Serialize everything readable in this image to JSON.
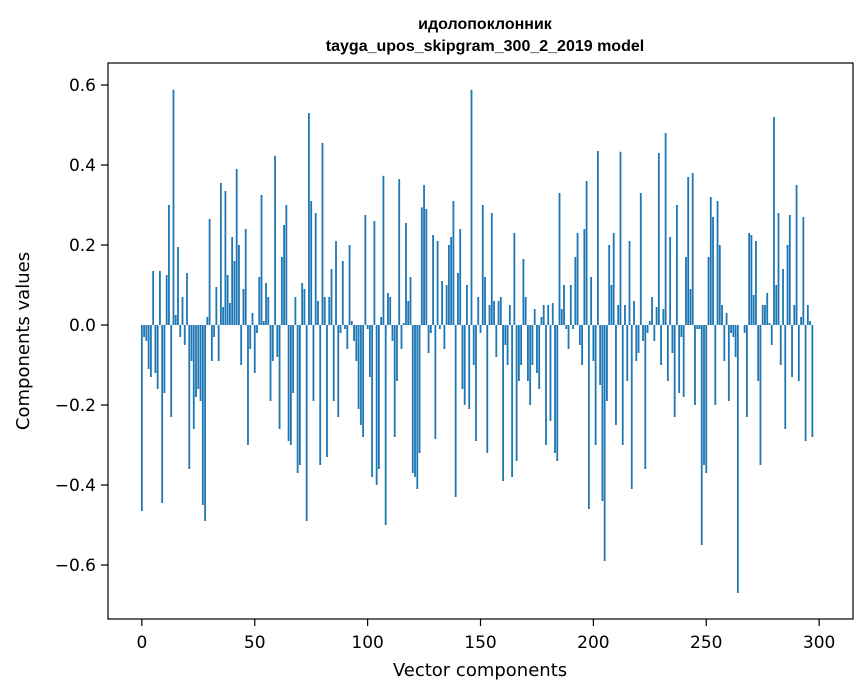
{
  "chart_data": {
    "type": "bar",
    "title": "идолопоклонник",
    "subtitle": "tayga_upos_skipgram_300_2_2019 model",
    "xlabel": "Vector components",
    "ylabel": "Components values",
    "xlim": [
      -15,
      315
    ],
    "ylim": [
      -0.735,
      0.655
    ],
    "xticks": [
      0,
      50,
      100,
      150,
      200,
      250,
      300
    ],
    "yticks": [
      -0.6,
      -0.4,
      -0.2,
      0.0,
      0.2,
      0.4,
      0.6
    ],
    "xtick_labels": [
      "0",
      "50",
      "100",
      "150",
      "200",
      "250",
      "300"
    ],
    "ytick_labels": [
      "−0.6",
      "−0.4",
      "−0.2",
      "0.0",
      "0.2",
      "0.4",
      "0.6"
    ],
    "grid": false,
    "bar_color": "#1f77b4",
    "values": [
      -0.465,
      -0.03,
      -0.04,
      -0.11,
      -0.13,
      0.135,
      -0.12,
      -0.16,
      0.135,
      -0.445,
      -0.17,
      0.125,
      0.3,
      -0.23,
      0.588,
      0.025,
      0.195,
      -0.03,
      0.07,
      -0.05,
      0.13,
      -0.36,
      -0.09,
      -0.26,
      -0.18,
      -0.16,
      -0.19,
      -0.45,
      -0.49,
      0.02,
      0.265,
      -0.09,
      -0.03,
      0.095,
      -0.09,
      0.355,
      0.045,
      0.335,
      0.125,
      0.055,
      0.22,
      0.16,
      0.39,
      0.2,
      -0.1,
      0.09,
      0.24,
      -0.3,
      -0.06,
      0.03,
      -0.12,
      -0.02,
      0.12,
      0.325,
      0.01,
      0.105,
      0.07,
      -0.19,
      -0.09,
      0.423,
      -0.08,
      -0.26,
      0.17,
      0.25,
      0.3,
      -0.29,
      -0.3,
      -0.17,
      0.07,
      -0.37,
      -0.35,
      0.105,
      0.09,
      -0.49,
      0.53,
      0.31,
      -0.19,
      0.28,
      0.06,
      -0.35,
      0.455,
      0.07,
      -0.33,
      0.07,
      0.14,
      -0.19,
      0.21,
      -0.23,
      -0.02,
      0.16,
      -0.01,
      -0.06,
      0.2,
      0.01,
      -0.04,
      -0.09,
      -0.21,
      -0.25,
      -0.28,
      0.275,
      -0.01,
      -0.13,
      -0.38,
      0.26,
      -0.4,
      -0.36,
      0.02,
      0.373,
      -0.5,
      0.08,
      0.07,
      -0.04,
      -0.28,
      -0.14,
      0.365,
      -0.06,
      0.005,
      0.255,
      0.06,
      0.12,
      -0.37,
      -0.38,
      -0.41,
      -0.32,
      0.294,
      0.35,
      0.29,
      -0.07,
      -0.02,
      0.225,
      -0.285,
      0.21,
      -0.01,
      0.11,
      -0.06,
      0.1,
      0.2,
      0.22,
      0.31,
      -0.43,
      0.13,
      0.24,
      -0.16,
      -0.2,
      0.1,
      -0.21,
      0.588,
      -0.1,
      -0.29,
      0.07,
      -0.02,
      0.3,
      0.12,
      -0.32,
      0.05,
      0.28,
      0.06,
      -0.08,
      0.06,
      0.07,
      -0.39,
      -0.05,
      -0.1,
      0.05,
      -0.38,
      0.23,
      -0.34,
      -0.14,
      -0.1,
      0.165,
      0.07,
      -0.14,
      -0.2,
      -0.1,
      0.04,
      -0.12,
      -0.16,
      0.02,
      0.05,
      -0.3,
      0.05,
      -0.24,
      0.055,
      -0.32,
      -0.34,
      0.33,
      0.04,
      0.1,
      -0.01,
      -0.06,
      0.1,
      -0.01,
      0.17,
      0.23,
      -0.05,
      -0.1,
      0.24,
      0.36,
      -0.46,
      0.12,
      -0.09,
      -0.3,
      0.435,
      -0.15,
      -0.44,
      -0.59,
      -0.19,
      0.2,
      0.1,
      0.23,
      -0.25,
      0.05,
      0.433,
      -0.3,
      0.05,
      -0.14,
      0.21,
      -0.41,
      0.06,
      -0.09,
      -0.07,
      0.33,
      -0.04,
      -0.36,
      -0.02,
      0.01,
      0.07,
      -0.04,
      0.045,
      0.43,
      -0.1,
      0.04,
      0.48,
      -0.14,
      0.22,
      -0.07,
      -0.23,
      0.3,
      -0.17,
      -0.03,
      -0.18,
      0.17,
      0.37,
      0.09,
      0.38,
      -0.2,
      -0.01,
      -0.01,
      -0.55,
      -0.35,
      -0.37,
      0.17,
      0.32,
      0.27,
      -0.2,
      0.31,
      0.2,
      0.05,
      -0.09,
      0.03,
      -0.19,
      -0.02,
      -0.03,
      -0.08,
      -0.67,
      0.0,
      0.0,
      -0.02,
      -0.23,
      0.23,
      0.225,
      0.075,
      0.21,
      -0.14,
      -0.35,
      0.05,
      0.05,
      0.08,
      0.005,
      -0.05,
      0.52,
      0.1,
      0.28,
      -0.1,
      0.14,
      -0.26,
      0.2,
      0.275,
      -0.13,
      0.05,
      0.35,
      -0.14,
      0.02,
      0.27,
      -0.29,
      0.05,
      0.01,
      -0.28,
      0.0
    ]
  }
}
